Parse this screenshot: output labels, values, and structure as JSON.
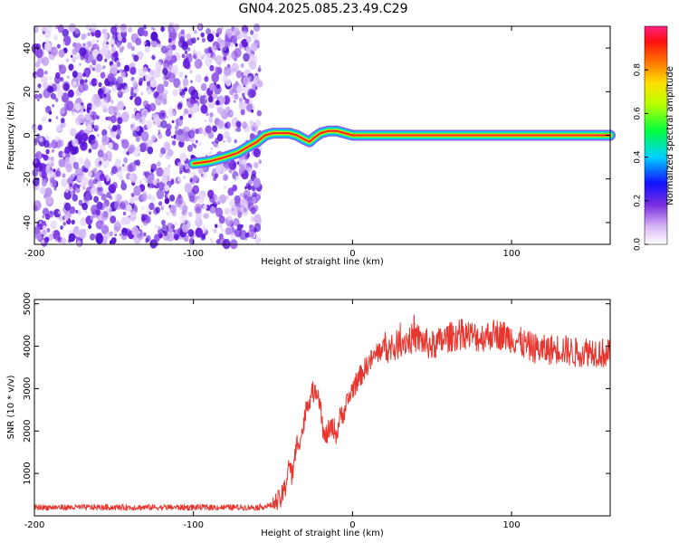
{
  "title": "GN04.2025.085.23.49.C29",
  "colors": {
    "trace": "#e8352e",
    "noise": "#7a2ee0",
    "axis": "#000000"
  },
  "chart_data": [
    {
      "type": "heatmap",
      "name": "spectrogram",
      "xlabel": "Height of straight line (km)",
      "ylabel": "Frequency (Hz)",
      "xlim": [
        -200,
        162
      ],
      "ylim": [
        -50,
        50
      ],
      "xticks": [
        -200,
        -100,
        0,
        100
      ],
      "yticks": [
        -40,
        -20,
        0,
        20,
        40
      ],
      "noise_region_x": [
        -200,
        -58
      ],
      "ridge": {
        "x": [
          -100,
          -90,
          -80,
          -72,
          -65,
          -60,
          -55,
          -50,
          -45,
          -40,
          -35,
          -30,
          -27,
          -24,
          -20,
          -15,
          -10,
          -5,
          0,
          20,
          60,
          100,
          162
        ],
        "y": [
          -13,
          -12,
          -10,
          -8,
          -5,
          -3,
          0,
          1,
          1,
          1,
          0,
          -2,
          -3,
          -1,
          1,
          2,
          2,
          1,
          0,
          0,
          0,
          0,
          0
        ]
      },
      "colorbar": {
        "label": "Normalized spectral amplitude",
        "ticks": [
          "0.0",
          "0.2",
          "0.4",
          "0.6",
          "0.8"
        ],
        "range": [
          0,
          1
        ]
      }
    },
    {
      "type": "line",
      "name": "snr",
      "xlabel": "Height of straight line (km)",
      "ylabel": "SNR (10 * v/v)",
      "xlim": [
        -200,
        162
      ],
      "ylim": [
        0,
        5100
      ],
      "xticks": [
        -200,
        -100,
        0,
        100
      ],
      "yticks": [
        1000,
        2000,
        3000,
        4000,
        5000
      ],
      "series": [
        {
          "name": "SNR",
          "x": [
            -200,
            -150,
            -100,
            -60,
            -50,
            -45,
            -42,
            -40,
            -38,
            -35,
            -32,
            -30,
            -28,
            -25,
            -22,
            -20,
            -18,
            -15,
            -12,
            -10,
            -8,
            -5,
            0,
            5,
            10,
            15,
            20,
            25,
            30,
            40,
            50,
            60,
            70,
            80,
            90,
            100,
            110,
            120,
            130,
            140,
            150,
            162
          ],
          "y": [
            200,
            200,
            200,
            200,
            250,
            400,
            700,
            1300,
            900,
            1700,
            1900,
            2300,
            2700,
            2900,
            3000,
            2600,
            1800,
            2000,
            2100,
            1900,
            2300,
            2500,
            3000,
            3300,
            3600,
            3800,
            4000,
            3900,
            4100,
            4200,
            4000,
            4200,
            4300,
            4200,
            4300,
            4200,
            4000,
            3900,
            3950,
            3850,
            3900,
            3800
          ]
        }
      ]
    }
  ]
}
